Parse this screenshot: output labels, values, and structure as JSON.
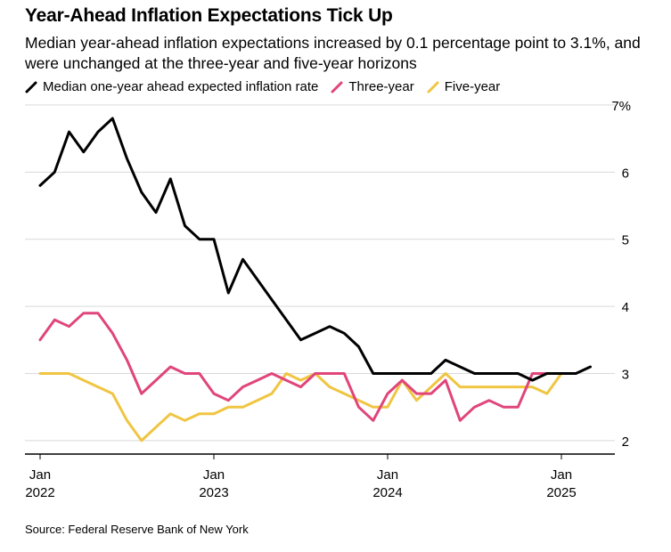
{
  "title": "Year-Ahead Inflation Expectations Tick Up",
  "subtitle": "Median year-ahead inflation expectations increased by 0.1 percentage point to 3.1%, and were unchanged at the three-year and five-year horizons",
  "source": "Source: Federal Reserve Bank of New York",
  "colors": {
    "one_year": "#000000",
    "three_year": "#e0457b",
    "five_year": "#f0c542",
    "grid": "#d9d9d9",
    "axis": "#000000"
  },
  "chart_data": {
    "type": "line",
    "xlabel": "",
    "ylabel": "",
    "y_axis_position": "right",
    "ylim": [
      1.8,
      7
    ],
    "y_ticks": [
      {
        "value": 2,
        "label": "2"
      },
      {
        "value": 3,
        "label": "3"
      },
      {
        "value": 4,
        "label": "4"
      },
      {
        "value": 5,
        "label": "5"
      },
      {
        "value": 6,
        "label": "6"
      },
      {
        "value": 7,
        "label": "7%"
      }
    ],
    "x_ticks": [
      {
        "month": "Jan",
        "year": "2022",
        "index": 0
      },
      {
        "month": "Jan",
        "year": "2023",
        "index": 12
      },
      {
        "month": "Jan",
        "year": "2024",
        "index": 24
      },
      {
        "month": "Jan",
        "year": "2025",
        "index": 36
      }
    ],
    "x_index_range": [
      -1,
      40
    ],
    "grid": true,
    "legend_placement": "top",
    "series": [
      {
        "name": "Median one-year ahead expected inflation rate",
        "color": "#000000",
        "values": [
          5.8,
          6.0,
          6.6,
          6.3,
          6.6,
          6.8,
          6.2,
          5.7,
          5.4,
          5.9,
          5.2,
          5.0,
          5.0,
          4.2,
          4.7,
          4.4,
          4.1,
          3.8,
          3.5,
          3.6,
          3.7,
          3.6,
          3.4,
          3.0,
          3.0,
          3.0,
          3.0,
          3.0,
          3.2,
          3.1,
          3.0,
          3.0,
          3.0,
          3.0,
          2.9,
          3.0,
          3.0,
          3.0,
          3.1
        ]
      },
      {
        "name": "Three-year",
        "color": "#e0457b",
        "values": [
          3.5,
          3.8,
          3.7,
          3.9,
          3.9,
          3.6,
          3.2,
          2.7,
          2.9,
          3.1,
          3.0,
          3.0,
          2.7,
          2.6,
          2.8,
          2.9,
          3.0,
          2.9,
          2.8,
          3.0,
          3.0,
          3.0,
          2.5,
          2.3,
          2.7,
          2.9,
          2.7,
          2.7,
          2.9,
          2.3,
          2.5,
          2.6,
          2.5,
          2.5,
          3.0,
          3.0,
          3.0
        ]
      },
      {
        "name": "Five-year",
        "color": "#f0c542",
        "values": [
          3.0,
          3.0,
          3.0,
          2.9,
          2.8,
          2.7,
          2.3,
          2.0,
          2.2,
          2.4,
          2.3,
          2.4,
          2.4,
          2.5,
          2.5,
          2.6,
          2.7,
          3.0,
          2.9,
          3.0,
          2.8,
          2.7,
          2.6,
          2.5,
          2.5,
          2.9,
          2.6,
          2.8,
          3.0,
          2.8,
          2.8,
          2.8,
          2.8,
          2.8,
          2.8,
          2.7,
          3.0,
          3.0
        ]
      }
    ]
  }
}
